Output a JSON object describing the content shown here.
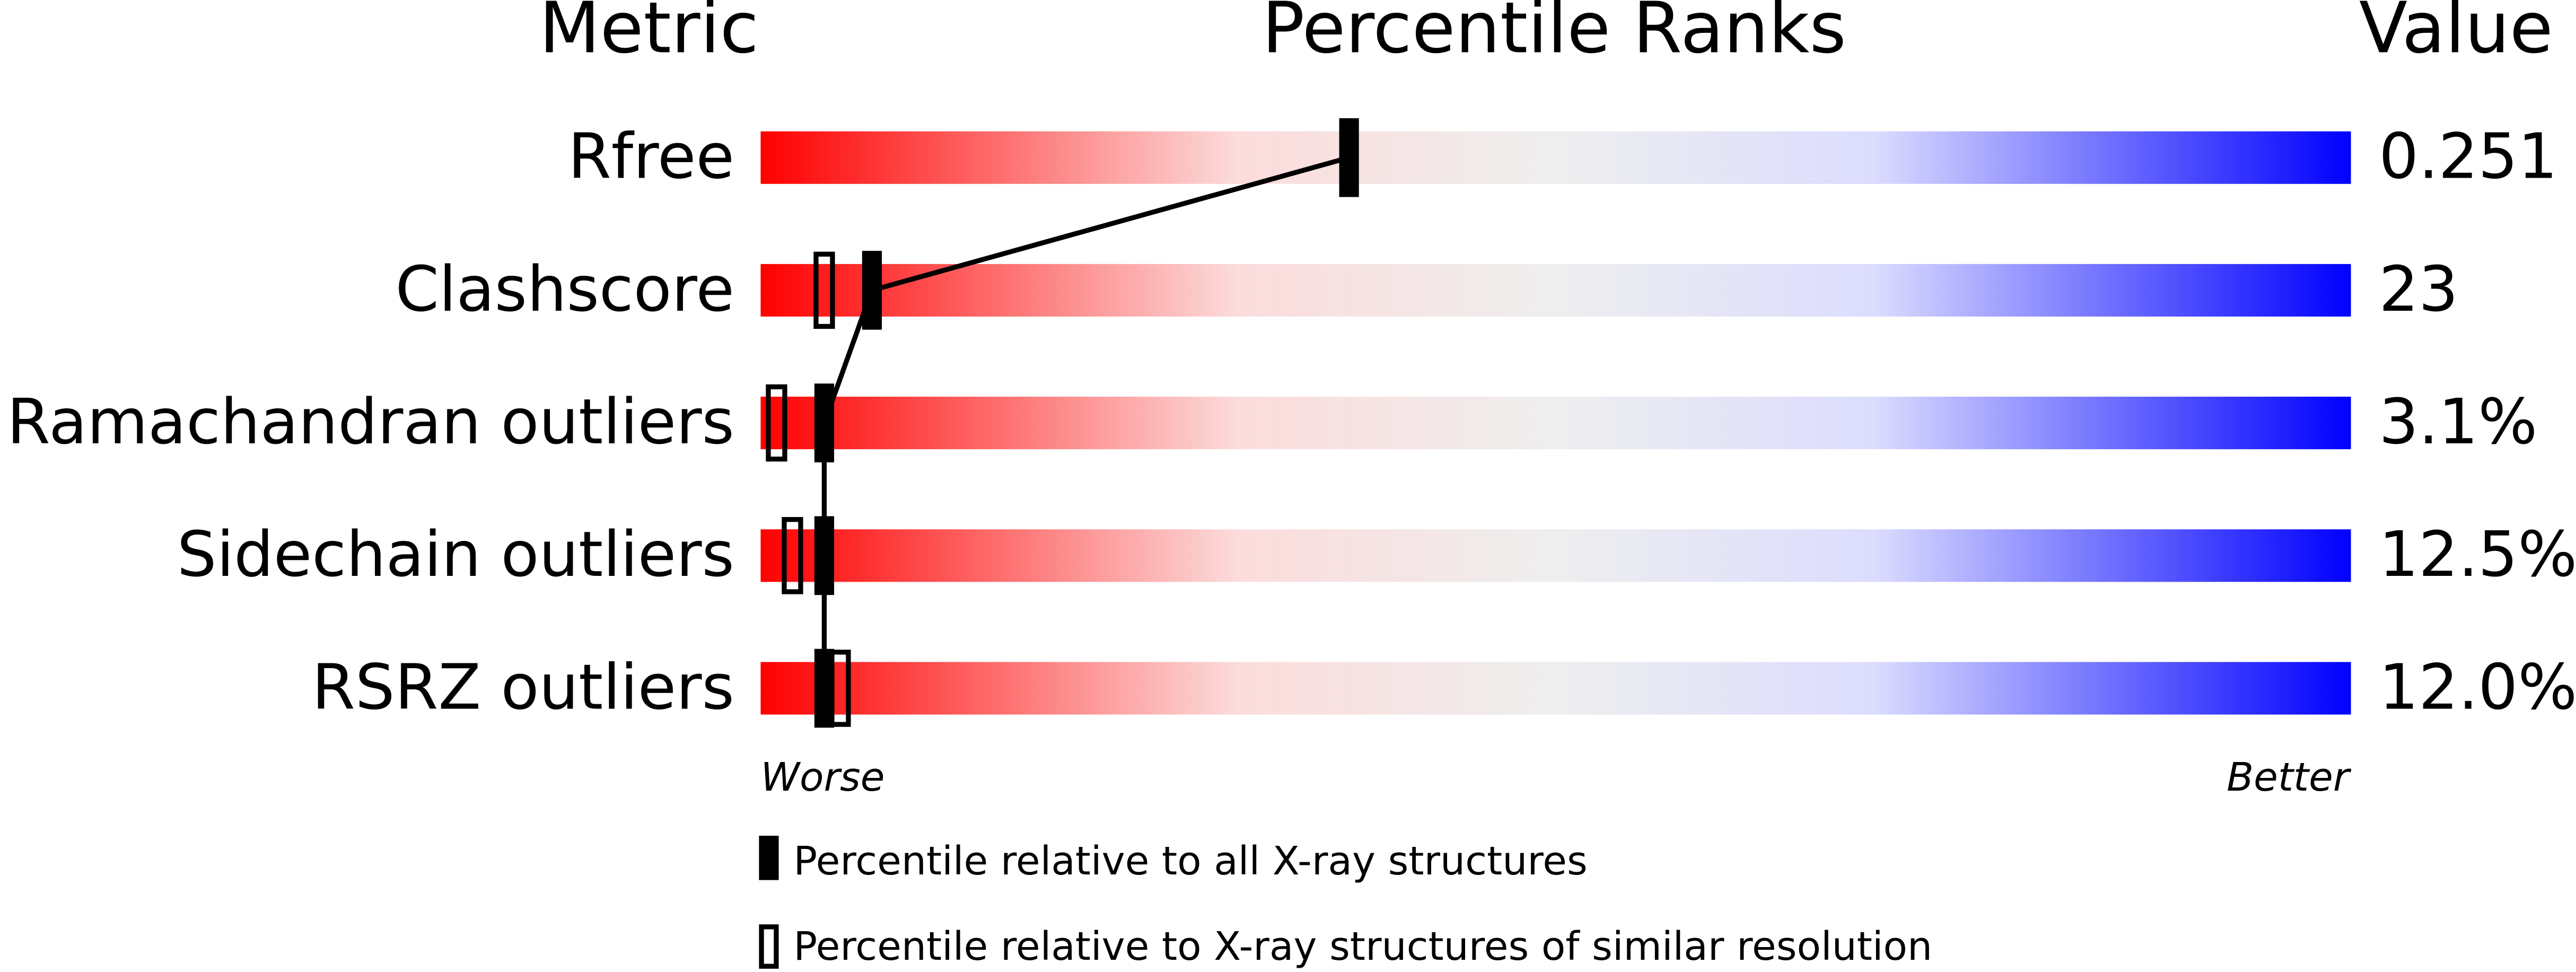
{
  "chart_data": {
    "type": "percentile-slider",
    "headers": {
      "metric": "Metric",
      "ranks": "Percentile Ranks",
      "value": "Value"
    },
    "categories": [
      "Rfree",
      "Clashscore",
      "Ramachandran outliers",
      "Sidechain outliers",
      "RSRZ outliers"
    ],
    "metric_values": [
      "0.251",
      "23",
      "3.1%",
      "12.5%",
      "12.0%"
    ],
    "series": [
      {
        "name": "Percentile relative to all X-ray structures",
        "color": "#000000",
        "values": [
          37,
          7,
          4,
          4,
          4
        ]
      },
      {
        "name": "Percentile relative to X-ray structures of similar resolution",
        "color": "#000000",
        "values": [
          null,
          4,
          1,
          2,
          5
        ]
      }
    ],
    "xlim": [
      0,
      100
    ],
    "axis_labels": {
      "low": "Worse",
      "high": "Better"
    }
  }
}
